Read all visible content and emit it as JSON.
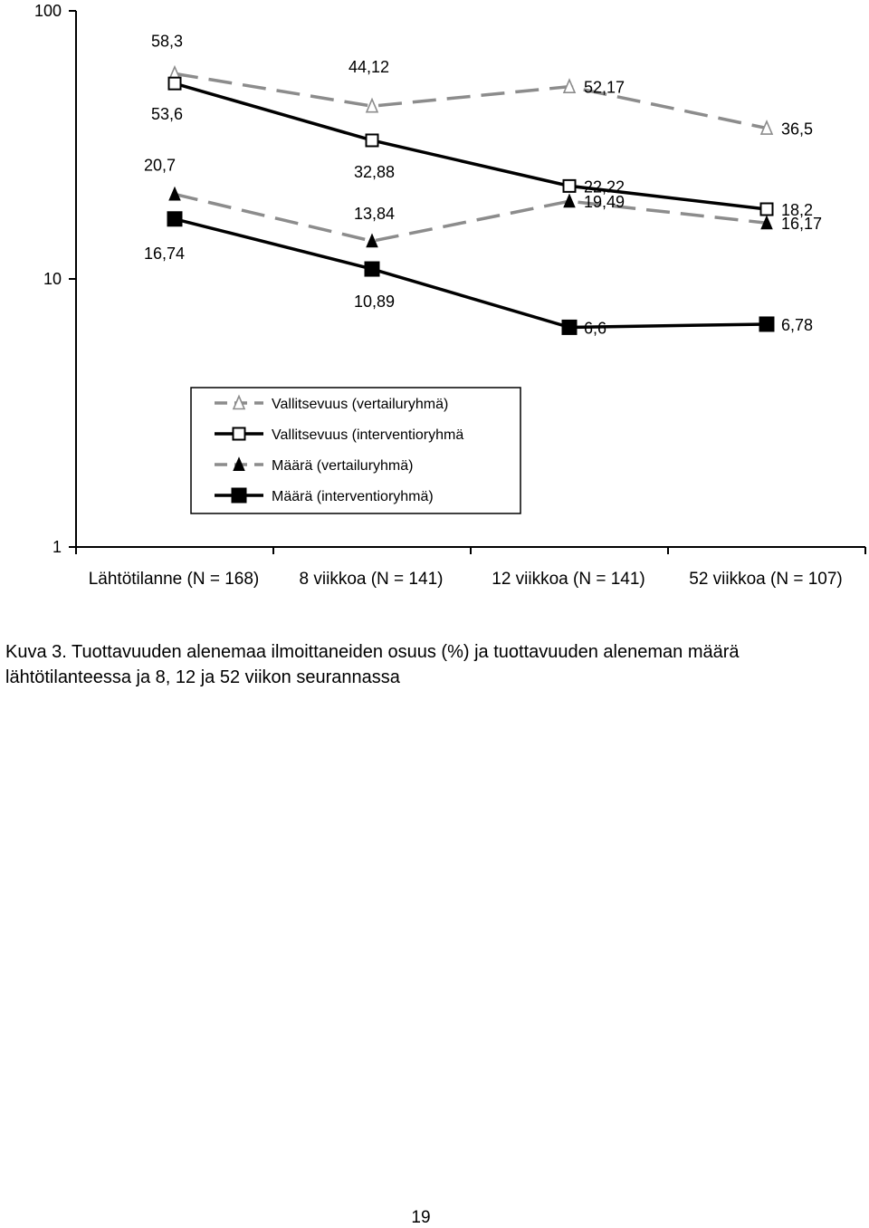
{
  "chart_data": {
    "type": "line",
    "yscale": "log",
    "ylim": [
      1,
      100
    ],
    "yticks": [
      {
        "value": 1,
        "label": "1"
      },
      {
        "value": 10,
        "label": "10"
      },
      {
        "value": 100,
        "label": "100"
      }
    ],
    "categories": [
      "Lähtötilanne (N = 168)",
      "8 viikkoa (N = 141)",
      "12 viikkoa (N = 141)",
      "52 viikkoa (N = 107)"
    ],
    "series": [
      {
        "name": "Vallitsevuus (vertailuryhmä)",
        "values": [
          58.3,
          44.12,
          52.17,
          36.5
        ],
        "labels": [
          "58,3",
          "44,12",
          "52,17",
          "36,5"
        ],
        "line_color": "#8c8c8c",
        "dashed": true,
        "marker": "triangle-open"
      },
      {
        "name": "Vallitsevuus (interventioryhmä",
        "values": [
          53.6,
          32.88,
          22.22,
          18.2
        ],
        "labels": [
          "53,6",
          "32,88",
          "22,22",
          "18,2"
        ],
        "line_color": "#000000",
        "dashed": false,
        "marker": "square-open"
      },
      {
        "name": "Määrä (vertailuryhmä)",
        "values": [
          20.7,
          13.84,
          19.49,
          16.17
        ],
        "labels": [
          "20,7",
          "13,84",
          "19,49",
          "16,17"
        ],
        "line_color": "#8c8c8c",
        "dashed": true,
        "marker": "triangle-filled"
      },
      {
        "name": "Määrä (interventioryhmä)",
        "values": [
          16.74,
          10.89,
          6.6,
          6.78
        ],
        "labels": [
          "16,74",
          "10,89",
          "6,6",
          "6,78"
        ],
        "line_color": "#000000",
        "dashed": false,
        "marker": "square-filled"
      }
    ],
    "legend_placement": "center",
    "grid": false
  },
  "caption": "Kuva 3. Tuottavuuden alenemaa ilmoittaneiden osuus (%) ja tuottavuuden aleneman määrä lähtötilanteessa ja 8, 12 ja 52 viikon seurannassa",
  "page_number": "19"
}
